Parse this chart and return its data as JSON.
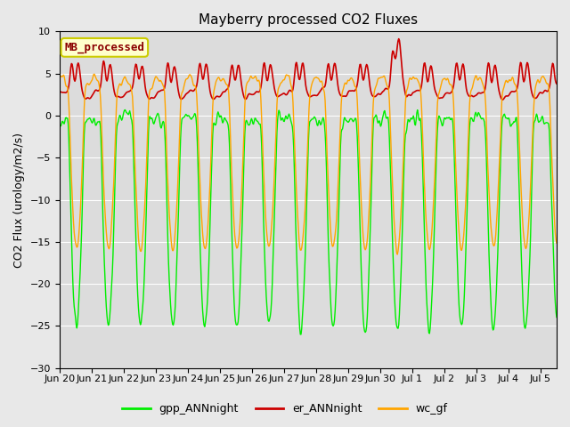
{
  "title": "Mayberry processed CO2 Fluxes",
  "ylabel": "CO2 Flux (urology/m2/s)",
  "ylim": [
    -30,
    10
  ],
  "yticks": [
    -30,
    -25,
    -20,
    -15,
    -10,
    -5,
    0,
    5,
    10
  ],
  "bg_color": "#dcdcdc",
  "fig_bg_color": "#e8e8e8",
  "legend_label": "MB_processed",
  "legend_text_color": "#8b0000",
  "legend_box_color": "#ffffcc",
  "legend_box_edge_color": "#cccc00",
  "series": {
    "gpp_ANNnight": {
      "color": "#00ee00",
      "linewidth": 1.0
    },
    "er_ANNnight": {
      "color": "#cc0000",
      "linewidth": 1.2
    },
    "wc_gf": {
      "color": "#ffa500",
      "linewidth": 1.0
    }
  },
  "xtick_labels": [
    "Jun 20",
    "Jun 21",
    "Jun 22",
    "Jun 23",
    "Jun 24",
    "Jun 25",
    "Jun 26",
    "Jun 27",
    "Jun 28",
    "Jun 29",
    "Jun 30",
    "Jul 1",
    "Jul 2",
    "Jul 3",
    "Jul 4",
    "Jul 5"
  ],
  "n_days": 15.5,
  "pts_per_day": 48,
  "grid_color": "#ffffff",
  "grid_linewidth": 0.8
}
